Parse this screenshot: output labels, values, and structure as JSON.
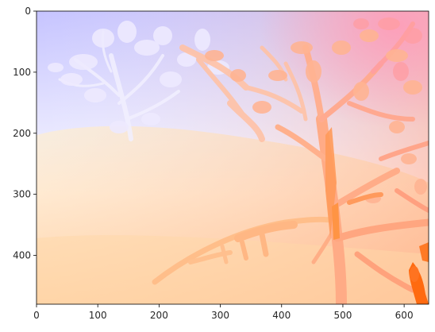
{
  "image": {
    "description_type": "depth-map visualization of a shrub/tree scene",
    "x_axis": {
      "ticks": [
        "0",
        "100",
        "200",
        "300",
        "400",
        "500",
        "600"
      ],
      "tick_values": [
        0,
        100,
        200,
        300,
        400,
        500,
        600
      ],
      "range": [
        0,
        640
      ]
    },
    "y_axis": {
      "ticks": [
        "0",
        "100",
        "200",
        "300",
        "400"
      ],
      "tick_values": [
        0,
        100,
        200,
        300,
        400
      ],
      "range": [
        0,
        480
      ]
    },
    "colors": {
      "far": "#c8c8ff",
      "mid": "#ffffff",
      "near": "#ffb07a",
      "nearest": "#ff6a10",
      "ground_warm": "#ffe8b0"
    }
  }
}
